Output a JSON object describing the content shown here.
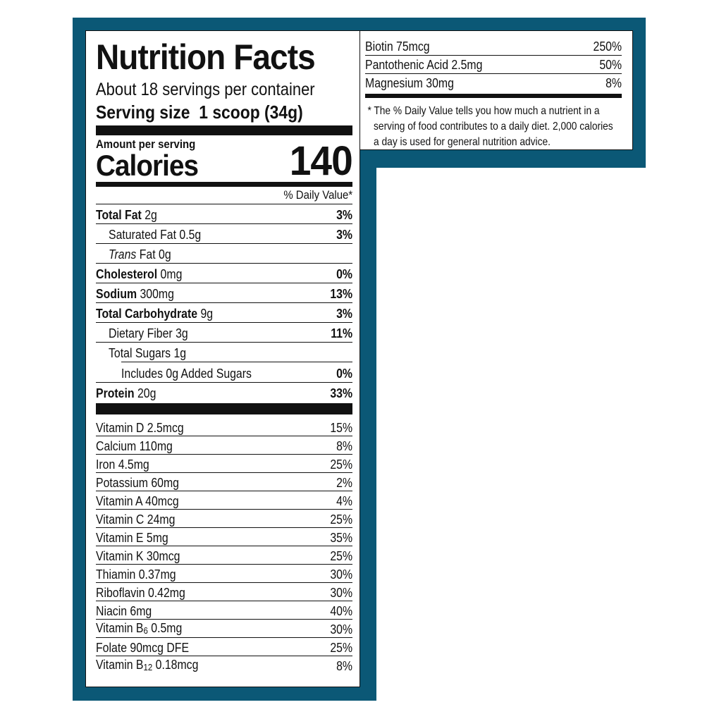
{
  "label": {
    "title": "Nutrition Facts",
    "servings": "About 18 servings per container",
    "serving_size_label": "Serving size",
    "serving_size_value": "1 scoop (34g)",
    "amount_per_serving": "Amount per serving",
    "calories_label": "Calories",
    "calories_value": "140",
    "daily_value_header": "% Daily Value*",
    "nutrients": [
      {
        "name": "Total Fat",
        "amount": "2g",
        "dv": "3%"
      },
      {
        "name": "Saturated Fat",
        "amount": "0.5g",
        "dv": "3%"
      },
      {
        "name": "Trans",
        "name2": "Fat",
        "amount": "0g",
        "dv": ""
      },
      {
        "name": "Cholesterol",
        "amount": "0mg",
        "dv": "0%"
      },
      {
        "name": "Sodium",
        "amount": "300mg",
        "dv": "13%"
      },
      {
        "name": "Total Carbohydrate",
        "amount": "9g",
        "dv": "3%"
      },
      {
        "name": "Dietary Fiber",
        "amount": "3g",
        "dv": "11%"
      },
      {
        "name": "Total Sugars",
        "amount": "1g",
        "dv": ""
      },
      {
        "name": "Includes 0g Added Sugars",
        "amount": "",
        "dv": "0%"
      },
      {
        "name": "Protein",
        "amount": "20g",
        "dv": "33%"
      }
    ],
    "vitamins": [
      {
        "name": "Vitamin D 2.5mcg",
        "dv": "15%"
      },
      {
        "name": "Calcium 110mg",
        "dv": "8%"
      },
      {
        "name": "Iron 4.5mg",
        "dv": "25%"
      },
      {
        "name": "Potassium 60mg",
        "dv": "2%"
      },
      {
        "name": "Vitamin A 40mcg",
        "dv": "4%"
      },
      {
        "name": "Vitamin C 24mg",
        "dv": "25%"
      },
      {
        "name": "Vitamin E 5mg",
        "dv": "35%"
      },
      {
        "name": "Vitamin K 30mcg",
        "dv": "25%"
      },
      {
        "name": "Thiamin 0.37mg",
        "dv": "30%"
      },
      {
        "name": "Riboflavin 0.42mg",
        "dv": "30%"
      },
      {
        "name": "Niacin 6mg",
        "dv": "40%"
      },
      {
        "name": "Vitamin B",
        "sub": "6",
        "rest": " 0.5mg",
        "dv": "30%"
      },
      {
        "name": "Folate 90mcg DFE",
        "dv": "25%"
      },
      {
        "name": "Vitamin B",
        "sub": "12",
        "rest": " 0.18mcg",
        "dv": "8%"
      }
    ],
    "continued": [
      {
        "name": "Biotin 75mcg",
        "dv": "250%"
      },
      {
        "name": "Pantothenic Acid 2.5mg",
        "dv": "50%"
      },
      {
        "name": "Magnesium 30mg",
        "dv": "8%"
      }
    ],
    "footnote": "* The % Daily Value tells you how much a nutrient in a serving of food contributes to a daily diet. 2,000 calories a day is used for general nutrition advice."
  },
  "colors": {
    "frame": "#0b5876",
    "ink": "#111111"
  }
}
